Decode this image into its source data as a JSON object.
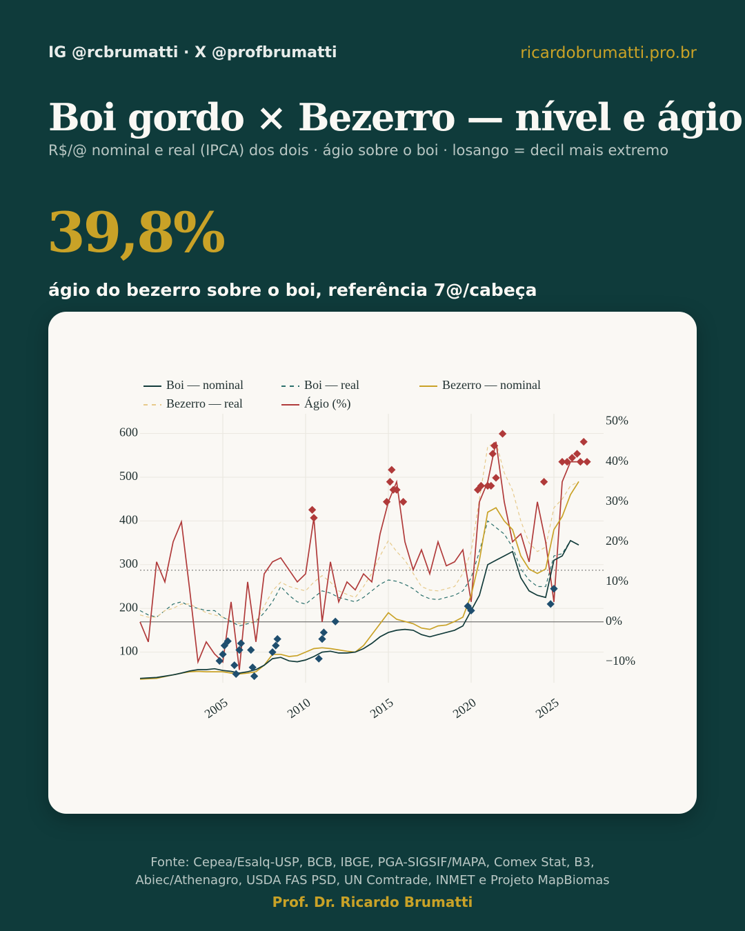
{
  "header": {
    "social": "IG @rcbrumatti · X @profbrumatti",
    "site": "ricardobrumatti.pro.br",
    "title": "Boi gordo × Bezerro — nível e ágio",
    "subtitle": "R$/@ nominal e real (IPCA) dos dois · ágio sobre o boi · losango = decil mais extremo"
  },
  "kpi": {
    "value": "39,8%",
    "caption": "ágio do bezerro sobre o boi, referência 7@/cabeça"
  },
  "footer": {
    "source": [
      "Fonte: Cepea/Esalq-USP, BCB, IBGE, PGA-SIGSIF/MAPA, Comex Stat, B3,",
      "Abiec/Athenagro, USDA FAS PSD, UN Comtrade, INMET e Projeto MapBiomas"
    ],
    "author": "Prof. Dr. Ricardo Brumatti"
  },
  "chart_data": {
    "type": "line",
    "x": [
      2000,
      2000.5,
      2001,
      2001.5,
      2002,
      2002.5,
      2003,
      2003.5,
      2004,
      2004.5,
      2005,
      2005.5,
      2006,
      2006.5,
      2007,
      2007.5,
      2008,
      2008.5,
      2009,
      2009.5,
      2010,
      2010.5,
      2011,
      2011.5,
      2012,
      2012.5,
      2013,
      2013.5,
      2014,
      2014.5,
      2015,
      2015.5,
      2016,
      2016.5,
      2017,
      2017.5,
      2018,
      2018.5,
      2019,
      2019.5,
      2020,
      2020.5,
      2021,
      2021.5,
      2022,
      2022.5,
      2023,
      2023.5,
      2024,
      2024.5,
      2025,
      2025.5,
      2026,
      2026.5
    ],
    "xlim": [
      2000,
      2028
    ],
    "xticks": [
      2005,
      2010,
      2015,
      2020,
      2025
    ],
    "ylim": [
      30,
      645
    ],
    "yticks": [
      100,
      200,
      300,
      400,
      500,
      600
    ],
    "y2lim": [
      -15.2,
      52
    ],
    "y2ticks": [
      {
        "value": -10,
        "label": "−10%"
      },
      {
        "value": 0,
        "label": "0%"
      },
      {
        "value": 10,
        "label": "10%"
      },
      {
        "value": 20,
        "label": "20%"
      },
      {
        "value": 30,
        "label": "30%"
      },
      {
        "value": 40,
        "label": "40%"
      },
      {
        "value": 50,
        "label": "50%"
      }
    ],
    "grid": true,
    "series": [
      {
        "name": "Boi — nominal",
        "color": "#123b3a",
        "style": "solid",
        "values": [
          40,
          41,
          42,
          45,
          48,
          52,
          57,
          60,
          60,
          62,
          58,
          56,
          52,
          55,
          60,
          70,
          85,
          88,
          80,
          78,
          82,
          90,
          100,
          102,
          98,
          98,
          100,
          108,
          120,
          135,
          145,
          150,
          152,
          150,
          140,
          135,
          140,
          145,
          150,
          160,
          195,
          230,
          300,
          310,
          320,
          330,
          270,
          240,
          230,
          225,
          310,
          320,
          355,
          345
        ]
      },
      {
        "name": "Boi — real",
        "color": "#2a6f6b",
        "style": "dashed",
        "values": [
          195,
          185,
          180,
          195,
          210,
          215,
          205,
          200,
          195,
          195,
          180,
          170,
          160,
          165,
          170,
          190,
          215,
          250,
          230,
          215,
          210,
          225,
          240,
          235,
          225,
          220,
          215,
          225,
          240,
          255,
          265,
          262,
          255,
          245,
          230,
          222,
          220,
          225,
          230,
          240,
          270,
          330,
          400,
          385,
          370,
          340,
          290,
          265,
          250,
          250,
          320,
          325,
          355,
          345
        ]
      },
      {
        "name": "Bezerro — nominal",
        "color": "#c9a227",
        "style": "solid",
        "values": [
          38,
          39,
          40,
          44,
          48,
          52,
          55,
          56,
          55,
          55,
          55,
          52,
          50,
          52,
          55,
          70,
          95,
          95,
          90,
          92,
          100,
          108,
          110,
          108,
          105,
          102,
          100,
          115,
          140,
          165,
          190,
          175,
          170,
          165,
          155,
          152,
          160,
          162,
          170,
          180,
          230,
          310,
          420,
          430,
          400,
          380,
          320,
          290,
          280,
          290,
          380,
          410,
          460,
          490
        ]
      },
      {
        "name": "Bezerro — real",
        "color": "#e6c98a",
        "style": "dashed",
        "values": [
          185,
          180,
          180,
          195,
          200,
          210,
          210,
          200,
          190,
          185,
          180,
          172,
          165,
          168,
          170,
          205,
          240,
          260,
          250,
          245,
          240,
          260,
          275,
          260,
          240,
          232,
          225,
          250,
          280,
          320,
          355,
          330,
          310,
          280,
          250,
          242,
          240,
          245,
          250,
          280,
          330,
          450,
          570,
          580,
          510,
          470,
          400,
          350,
          330,
          340,
          430,
          450,
          480,
          490
        ]
      },
      {
        "name": "Ágio (%)",
        "color": "#b03a3a",
        "style": "solid",
        "axis": "y2",
        "values": [
          0,
          -5,
          15,
          10,
          20,
          25,
          8,
          -10,
          -5,
          -8,
          -10,
          5,
          -12,
          10,
          -5,
          12,
          15,
          16,
          13,
          10,
          12,
          26,
          0,
          15,
          5,
          10,
          8,
          12,
          10,
          22,
          30,
          35,
          20,
          13,
          18,
          12,
          20,
          14,
          15,
          18,
          5,
          30,
          35,
          45,
          30,
          20,
          22,
          15,
          30,
          20,
          5,
          35,
          40,
          40
        ]
      }
    ],
    "markers": [
      {
        "color": "#1f4e6e",
        "x": [
          2004.8,
          2005,
          2005.1,
          2005.3,
          2005.7,
          2005.8,
          2006,
          2006.1,
          2006.7,
          2006.8,
          2006.9,
          2008,
          2008.2,
          2008.3,
          2010.8,
          2011,
          2011.1,
          2011.8,
          2019.8,
          2020,
          2024.8,
          2025
        ],
        "values": [
          80,
          95,
          115,
          125,
          70,
          50,
          105,
          120,
          105,
          65,
          45,
          100,
          115,
          130,
          85,
          130,
          145,
          170,
          205,
          195,
          210,
          245
        ]
      },
      {
        "color": "#b03a3a",
        "axis": "y2",
        "x": [
          2010.4,
          2010.5,
          2014.9,
          2015.1,
          2015.2,
          2015.3,
          2015.5,
          2015.9,
          2020.4,
          2020.6,
          2021,
          2021.2,
          2021.3,
          2021.4,
          2021.5,
          2021.9,
          2024.4,
          2025.5,
          2025.8,
          2026.1,
          2026.4,
          2026.6,
          2026.8,
          2027
        ],
        "values": [
          28,
          26,
          30,
          35,
          38,
          33,
          33,
          30,
          33,
          34,
          34,
          34,
          42,
          44,
          36,
          47,
          35,
          40,
          40,
          41,
          42,
          40,
          45,
          40
        ]
      }
    ],
    "reference_line": {
      "value": 12.9,
      "axis": "y2"
    }
  }
}
